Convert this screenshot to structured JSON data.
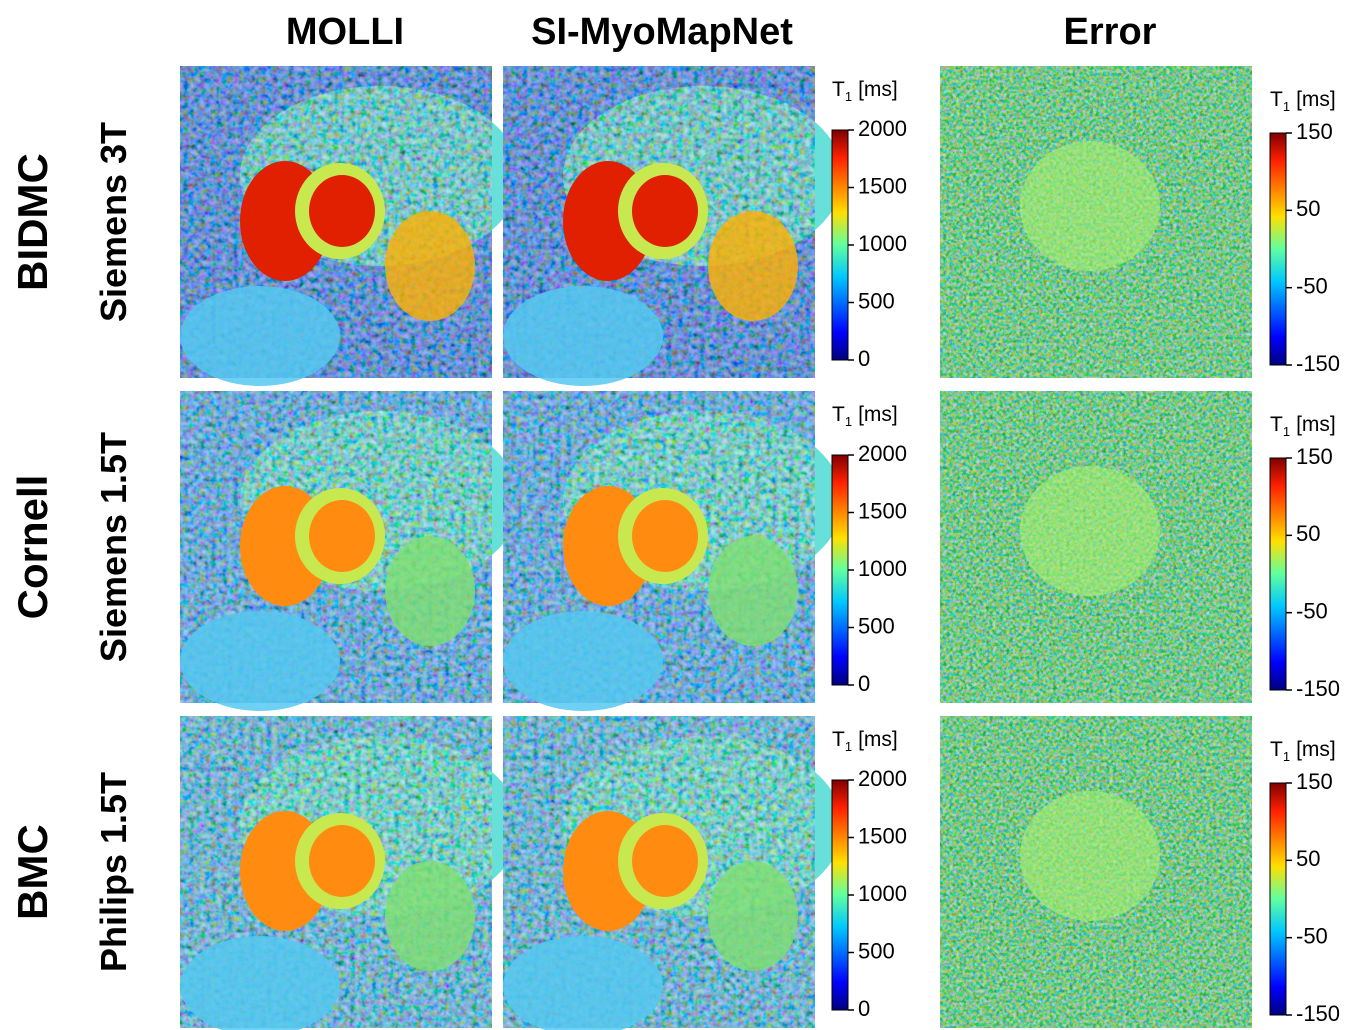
{
  "columns": [
    "MOLLI",
    "SI-MyoMapNet",
    "Error"
  ],
  "rows": [
    {
      "site": "BIDMC",
      "scanner": "Siemens 3T"
    },
    {
      "site": "Cornell",
      "scanner": "Siemens 1.5T"
    },
    {
      "site": "BMC",
      "scanner": "Philips 1.5T"
    }
  ],
  "colorbars": {
    "t1": {
      "symbol": "T",
      "subscript": "1",
      "unit": "[ms]",
      "ticks": [
        2000,
        1500,
        1000,
        500,
        0
      ]
    },
    "error": {
      "symbol": "T",
      "subscript": "1",
      "unit": "[ms]",
      "ticks": [
        150,
        50,
        -50,
        -150
      ]
    }
  }
}
